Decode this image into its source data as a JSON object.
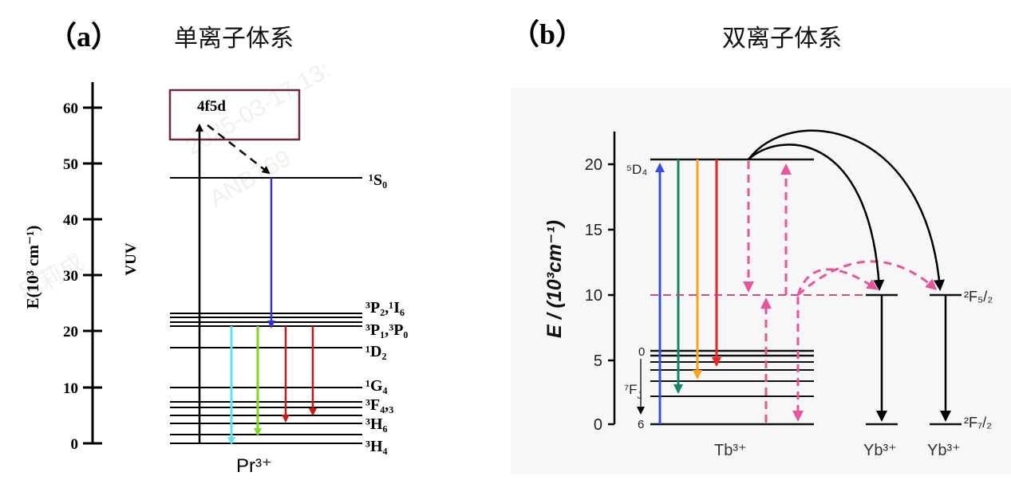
{
  "panel_a": {
    "label": "（a）",
    "title": "单离子体系",
    "y_axis_label": "E(10³ cm⁻¹)",
    "y_ticks": [
      "0",
      "10",
      "20",
      "30",
      "40",
      "50",
      "60"
    ],
    "region_label": "VUV",
    "band_label": "4f5d",
    "ion_label": "Pr³⁺",
    "levels": {
      "S0": "¹S₀",
      "P2_I6": "³P₂,¹I₆",
      "P1_P0": "³P₁,³P₀",
      "D2": "¹D₂",
      "G4": "¹G₄",
      "F43": "³F₄,₃",
      "H6": "³H₆",
      "H4": "³H₄"
    },
    "colors": {
      "pump": "#000000",
      "vuv_emission": "#3333dd",
      "cyan": "#55e6f0",
      "green": "#77dd22",
      "red": "#c81818"
    }
  },
  "panel_b": {
    "label": "（b）",
    "title": "双离子体系",
    "y_axis_label": "E / (10³cm⁻¹)",
    "y_ticks": [
      "0",
      "5",
      "10",
      "15",
      "20"
    ],
    "level_5D4": "⁵D₄",
    "level_7FJ": "⁷F",
    "level_7FJ_sub": "J",
    "j_top": "0",
    "j_bottom": "6",
    "tb_label": "Tb³⁺",
    "yb_label_1": "Yb³⁺",
    "yb_label_2": "Yb³⁺",
    "level_2F52": "²F₅/₂",
    "level_2F72": "²F₇/₂",
    "colors": {
      "blue": "#3a4fd8",
      "teal": "#11876a",
      "orange": "#ffa020",
      "red": "#ee2222",
      "magenta": "#e8559a"
    }
  },
  "watermarks": [
    "ANB769",
    "2025-03-17 13:",
    "吕莉成"
  ]
}
